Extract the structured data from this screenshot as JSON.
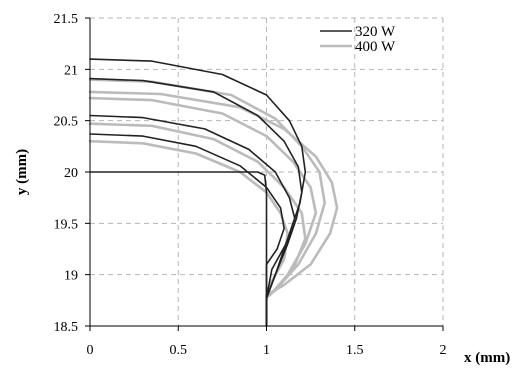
{
  "chart_data": {
    "type": "line",
    "title": "",
    "xlabel": "x (mm)",
    "ylabel": "y (mm)",
    "xlim": [
      0,
      2
    ],
    "ylim": [
      18.5,
      21.5
    ],
    "xticks": [
      "0",
      "0.5",
      "1",
      "1.5",
      "2"
    ],
    "yticks": [
      "18.5",
      "19",
      "19.5",
      "20",
      "20.5",
      "21",
      "21.5"
    ],
    "grid": true,
    "legend_position": "top-right",
    "legend": [
      {
        "name": "320 W",
        "color": "#222222"
      },
      {
        "name": "400 W",
        "color": "#bbbbbb"
      }
    ],
    "series": [
      {
        "name": "320 W",
        "color": "#222222",
        "curves": [
          [
            [
              0,
              20
            ],
            [
              0.5,
              20
            ],
            [
              0.95,
              20
            ],
            [
              0.99,
              19.97
            ],
            [
              1.0,
              19.8
            ],
            [
              1.0,
              19.4
            ],
            [
              1.0,
              18.85
            ],
            [
              1.0,
              18.5
            ]
          ],
          [
            [
              0,
              20.37
            ],
            [
              0.3,
              20.35
            ],
            [
              0.6,
              20.25
            ],
            [
              0.85,
              20.06
            ],
            [
              1.0,
              19.85
            ],
            [
              1.08,
              19.65
            ],
            [
              1.1,
              19.45
            ],
            [
              1.06,
              19.25
            ],
            [
              1.0,
              19.1
            ],
            [
              1.0,
              18.8
            ],
            [
              1.0,
              18.5
            ]
          ],
          [
            [
              0,
              20.55
            ],
            [
              0.3,
              20.53
            ],
            [
              0.65,
              20.42
            ],
            [
              0.9,
              20.22
            ],
            [
              1.05,
              20.0
            ],
            [
              1.13,
              19.75
            ],
            [
              1.16,
              19.55
            ],
            [
              1.12,
              19.33
            ],
            [
              1.03,
              19.05
            ],
            [
              1.0,
              18.77
            ]
          ],
          [
            [
              0,
              20.91
            ],
            [
              0.3,
              20.89
            ],
            [
              0.7,
              20.78
            ],
            [
              0.95,
              20.55
            ],
            [
              1.1,
              20.3
            ],
            [
              1.18,
              20.05
            ],
            [
              1.2,
              19.8
            ],
            [
              1.17,
              19.55
            ],
            [
              1.12,
              19.3
            ],
            [
              1.05,
              19.0
            ],
            [
              1.0,
              18.77
            ]
          ],
          [
            [
              0,
              21.1
            ],
            [
              0.35,
              21.08
            ],
            [
              0.75,
              20.95
            ],
            [
              1.0,
              20.75
            ],
            [
              1.13,
              20.5
            ],
            [
              1.2,
              20.25
            ],
            [
              1.22,
              20.0
            ],
            [
              1.19,
              19.7
            ],
            [
              1.12,
              19.35
            ],
            [
              1.05,
              19.0
            ],
            [
              1.0,
              18.77
            ]
          ]
        ]
      },
      {
        "name": "400 W",
        "color": "#bbbbbb",
        "curves": [
          [
            [
              0,
              20.3
            ],
            [
              0.3,
              20.28
            ],
            [
              0.6,
              20.18
            ],
            [
              0.85,
              20.0
            ],
            [
              1.0,
              19.8
            ],
            [
              1.08,
              19.6
            ],
            [
              1.12,
              19.4
            ],
            [
              1.1,
              19.15
            ],
            [
              1.02,
              18.9
            ],
            [
              1.0,
              18.75
            ],
            [
              1.0,
              18.5
            ]
          ],
          [
            [
              0,
              20.47
            ],
            [
              0.35,
              20.45
            ],
            [
              0.7,
              20.32
            ],
            [
              0.95,
              20.1
            ],
            [
              1.1,
              19.85
            ],
            [
              1.2,
              19.6
            ],
            [
              1.22,
              19.35
            ],
            [
              1.15,
              19.05
            ],
            [
              1.05,
              18.85
            ],
            [
              1.0,
              18.78
            ]
          ],
          [
            [
              0,
              20.72
            ],
            [
              0.35,
              20.7
            ],
            [
              0.75,
              20.57
            ],
            [
              1.0,
              20.35
            ],
            [
              1.15,
              20.1
            ],
            [
              1.25,
              19.85
            ],
            [
              1.28,
              19.6
            ],
            [
              1.22,
              19.3
            ],
            [
              1.12,
              19.0
            ],
            [
              1.02,
              18.8
            ]
          ],
          [
            [
              0,
              20.9
            ],
            [
              0.35,
              20.88
            ],
            [
              0.8,
              20.75
            ],
            [
              1.05,
              20.52
            ],
            [
              1.2,
              20.25
            ],
            [
              1.3,
              20.0
            ],
            [
              1.33,
              19.7
            ],
            [
              1.28,
              19.4
            ],
            [
              1.18,
              19.1
            ],
            [
              1.05,
              18.85
            ],
            [
              1.0,
              18.78
            ]
          ],
          [
            [
              0,
              20.78
            ],
            [
              0.4,
              20.76
            ],
            [
              0.85,
              20.63
            ],
            [
              1.1,
              20.42
            ],
            [
              1.28,
              20.15
            ],
            [
              1.37,
              19.9
            ],
            [
              1.4,
              19.65
            ],
            [
              1.36,
              19.4
            ],
            [
              1.25,
              19.1
            ],
            [
              1.1,
              18.9
            ],
            [
              1.0,
              18.8
            ]
          ]
        ]
      }
    ]
  }
}
